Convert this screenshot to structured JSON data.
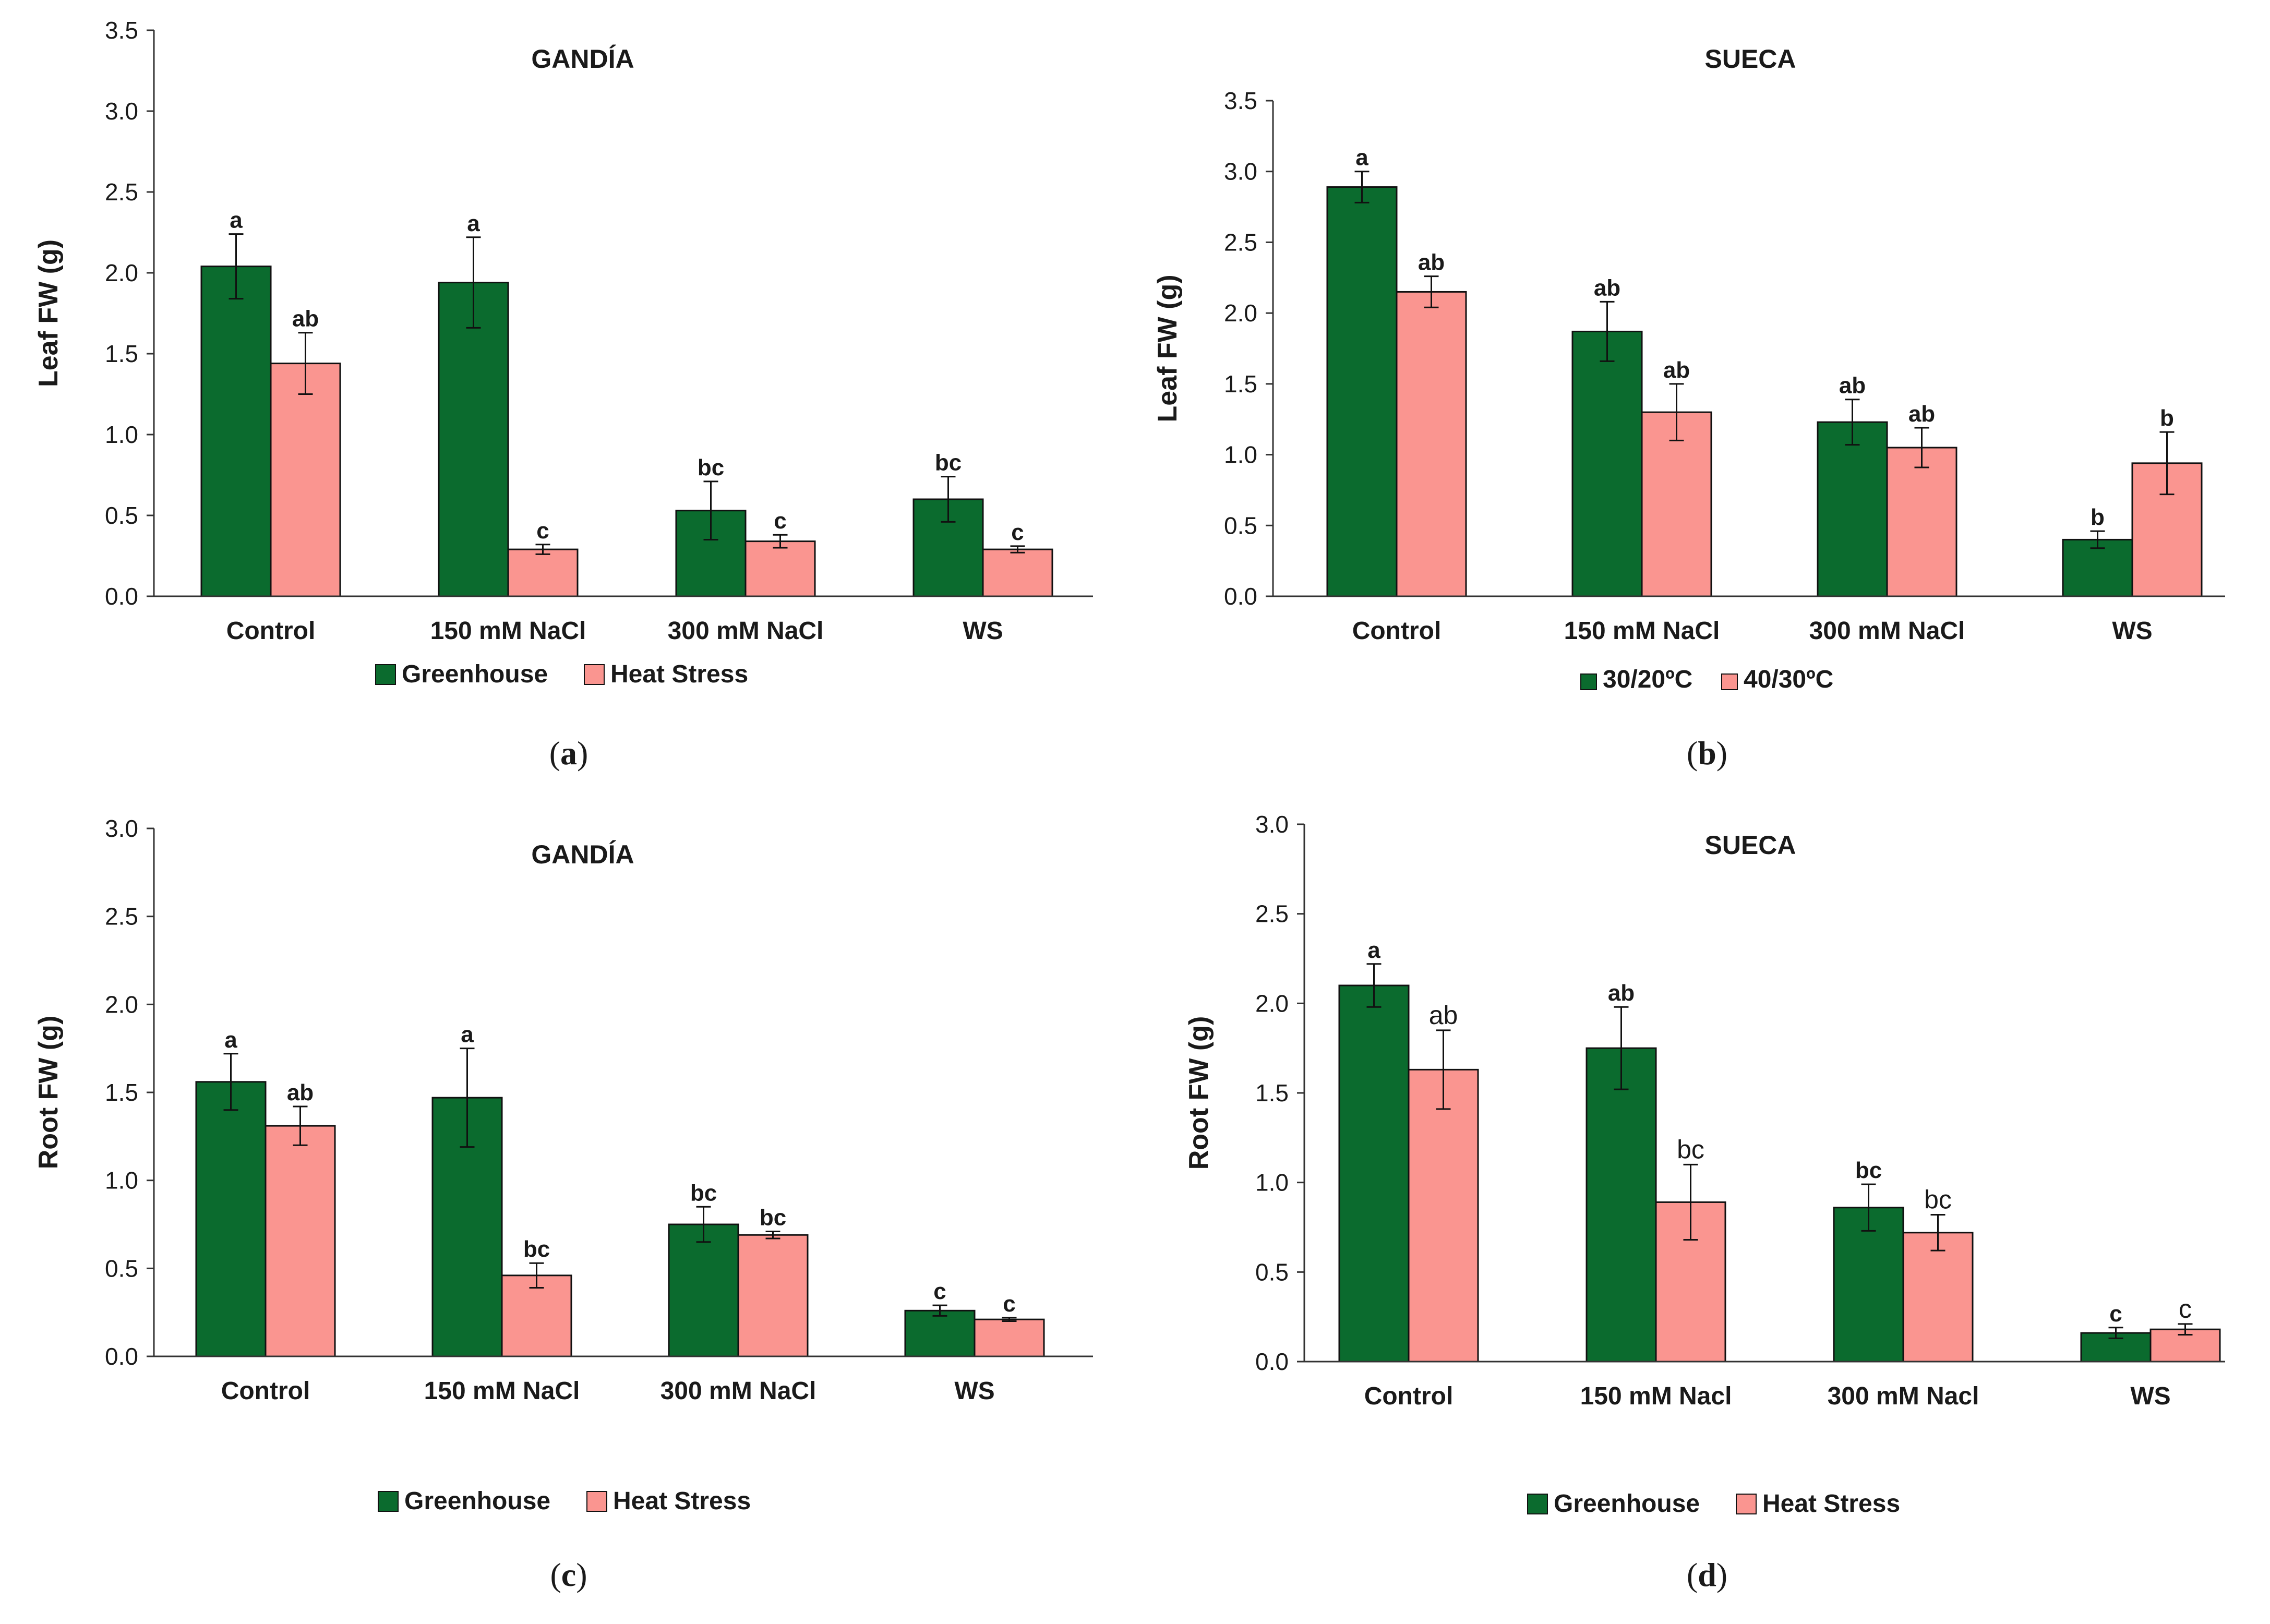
{
  "colors": {
    "series_1": "#0b6b2e",
    "series_2": "#fa9590",
    "axis": "#333333",
    "text": "#1a1a1a"
  },
  "chart_data": [
    {
      "panel": "a",
      "type": "bar",
      "title": "GANDÍA",
      "caption_letter": "a",
      "xlabel": "",
      "ylabel": "Leaf FW (g)",
      "ylim": [
        0,
        3.5
      ],
      "yticks": [
        "0.0",
        "0.5",
        "1.0",
        "1.5",
        "2.0",
        "2.5",
        "3.0",
        "3.5"
      ],
      "categories": [
        "Control",
        "150 mM NaCl",
        "300 mM NaCl",
        "WS"
      ],
      "label_style": "bold",
      "legend_position": "bottom",
      "series": [
        {
          "name": "Greenhouse",
          "values": [
            2.04,
            1.94,
            0.53,
            0.6
          ],
          "errors": [
            0.2,
            0.28,
            0.18,
            0.14
          ],
          "labels": [
            "a",
            "a",
            "bc",
            "bc"
          ],
          "label_bold": [
            true,
            true,
            true,
            true
          ]
        },
        {
          "name": "Heat Stress",
          "values": [
            1.44,
            0.29,
            0.34,
            0.29
          ],
          "errors": [
            0.19,
            0.03,
            0.04,
            0.02
          ],
          "labels": [
            "ab",
            "c",
            "c",
            "c"
          ],
          "label_bold": [
            true,
            true,
            true,
            true
          ]
        }
      ]
    },
    {
      "panel": "b",
      "type": "bar",
      "title": "SUECA",
      "caption_letter": "b",
      "xlabel": "",
      "ylabel": "Leaf FW (g)",
      "ylim": [
        0,
        3.5
      ],
      "yticks": [
        "0.0",
        "0.5",
        "1.0",
        "1.5",
        "2.0",
        "2.5",
        "3.0",
        "3.5"
      ],
      "categories": [
        "Control",
        "150 mM NaCl",
        "300 mM NaCl",
        "WS"
      ],
      "legend_position": "bottom",
      "series": [
        {
          "name": "30/20ºC",
          "values": [
            2.89,
            1.87,
            1.23,
            0.4
          ],
          "errors": [
            0.11,
            0.21,
            0.16,
            0.06
          ],
          "labels": [
            "a",
            "ab",
            "ab",
            "b"
          ],
          "label_bold": [
            true,
            true,
            true,
            true
          ]
        },
        {
          "name": "40/30ºC",
          "values": [
            2.15,
            1.3,
            1.05,
            0.94
          ],
          "errors": [
            0.11,
            0.2,
            0.14,
            0.22
          ],
          "labels": [
            "ab",
            "ab",
            "ab",
            "b"
          ],
          "label_bold": [
            true,
            true,
            true,
            true
          ]
        }
      ]
    },
    {
      "panel": "c",
      "type": "bar",
      "title": "GANDÍA",
      "caption_letter": "c",
      "xlabel": "",
      "ylabel": "Root FW (g)",
      "ylim": [
        0,
        3.0
      ],
      "yticks": [
        "0.0",
        "0.5",
        "1.0",
        "1.5",
        "2.0",
        "2.5",
        "3.0"
      ],
      "categories": [
        "Control",
        "150 mM NaCl",
        "300 mM NaCl",
        "WS"
      ],
      "legend_position": "bottom",
      "series": [
        {
          "name": "Greenhouse",
          "values": [
            1.56,
            1.47,
            0.75,
            0.26
          ],
          "errors": [
            0.16,
            0.28,
            0.1,
            0.03
          ],
          "labels": [
            "a",
            "a",
            "bc",
            "c"
          ],
          "label_bold": [
            true,
            true,
            true,
            true
          ]
        },
        {
          "name": "Heat Stress",
          "values": [
            1.31,
            0.46,
            0.69,
            0.21
          ],
          "errors": [
            0.11,
            0.07,
            0.02,
            0.01
          ],
          "labels": [
            "ab",
            "bc",
            "bc",
            "c"
          ],
          "label_bold": [
            true,
            true,
            true,
            true
          ]
        }
      ]
    },
    {
      "panel": "d",
      "type": "bar",
      "title": "SUECA",
      "caption_letter": "d",
      "xlabel": "",
      "ylabel": "Root FW (g)",
      "ylim": [
        0,
        3.0
      ],
      "yticks": [
        "0.0",
        "0.5",
        "1.0",
        "1.5",
        "2.0",
        "2.5",
        "3.0"
      ],
      "categories": [
        "Control",
        "150 mM Nacl",
        "300 mM Nacl",
        "WS"
      ],
      "legend_position": "bottom",
      "series": [
        {
          "name": "Greenhouse",
          "values": [
            2.1,
            1.75,
            0.86,
            0.16
          ],
          "errors": [
            0.12,
            0.23,
            0.13,
            0.03
          ],
          "labels": [
            "a",
            "ab",
            "bc",
            "c"
          ],
          "label_bold": [
            true,
            true,
            true,
            true
          ]
        },
        {
          "name": "Heat Stress",
          "values": [
            1.63,
            0.89,
            0.72,
            0.18
          ],
          "errors": [
            0.22,
            0.21,
            0.1,
            0.03
          ],
          "labels": [
            "ab",
            "bc",
            "bc",
            "c"
          ],
          "label_bold": [
            false,
            false,
            false,
            false
          ]
        }
      ]
    }
  ]
}
